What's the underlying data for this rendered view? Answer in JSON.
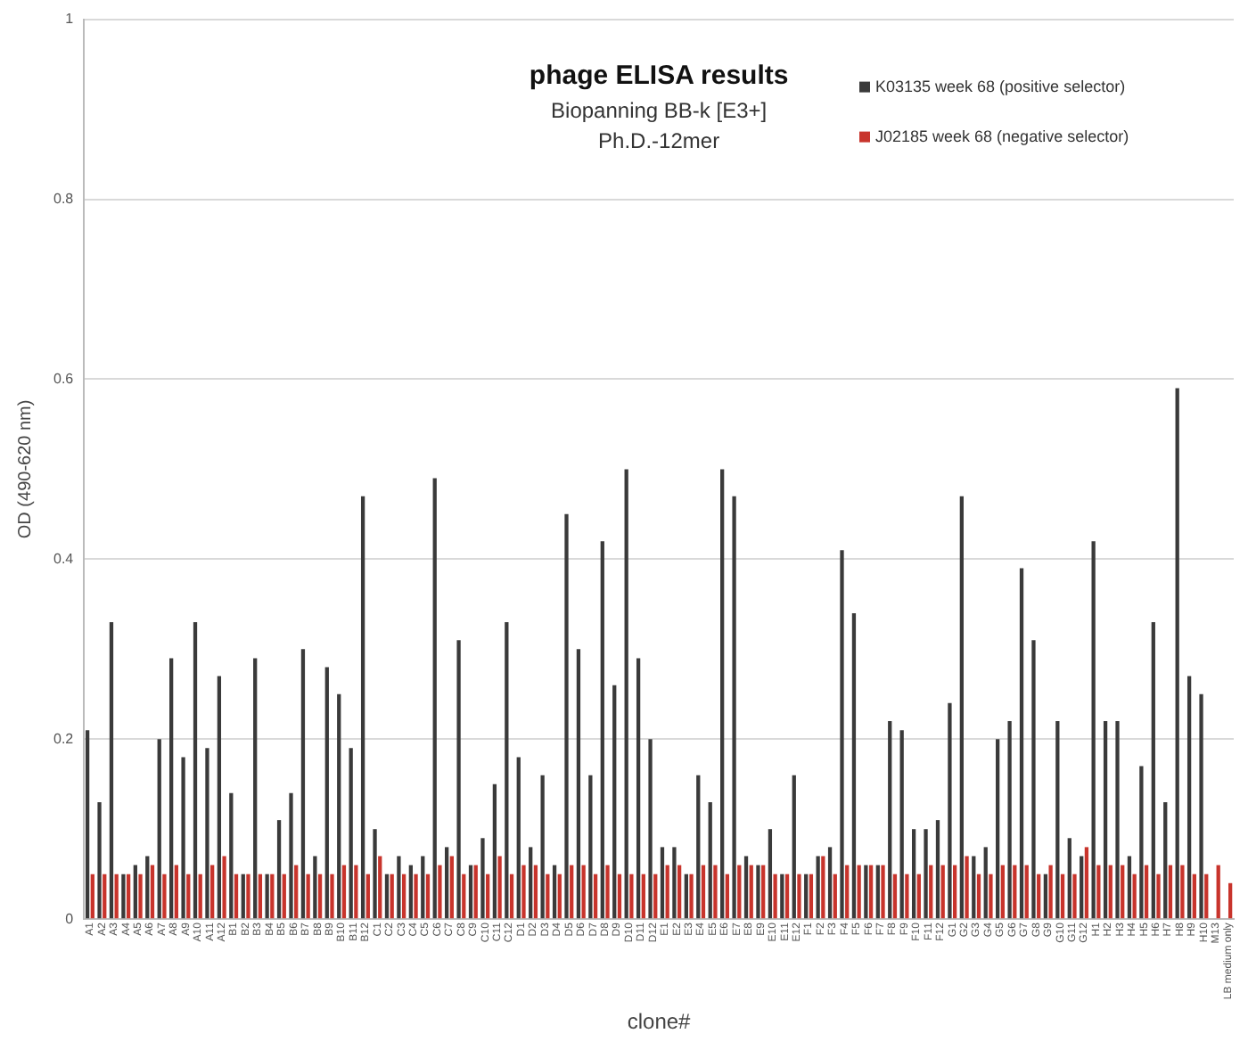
{
  "chart_data": {
    "type": "bar",
    "title": "phage ELISA results",
    "subtitle": "Biopanning BB-k [E3+]\nPh.D.-12mer",
    "xlabel": "clone#",
    "ylabel": "OD (490-620 nm)",
    "categories": [
      "A1",
      "A2",
      "A3",
      "A4",
      "A5",
      "A6",
      "A7",
      "A8",
      "A9",
      "A10",
      "A11",
      "A12",
      "B1",
      "B2",
      "B3",
      "B4",
      "B5",
      "B6",
      "B7",
      "B8",
      "B9",
      "B10",
      "B11",
      "B12",
      "C1",
      "C2",
      "C3",
      "C4",
      "C5",
      "C6",
      "C7",
      "C8",
      "C9",
      "C10",
      "C11",
      "C12",
      "D1",
      "D2",
      "D3",
      "D4",
      "D5",
      "D6",
      "D7",
      "D8",
      "D9",
      "D10",
      "D11",
      "D12",
      "E1",
      "E2",
      "E3",
      "E4",
      "E5",
      "E6",
      "E7",
      "E8",
      "E9",
      "E10",
      "E11",
      "E12",
      "F1",
      "F2",
      "F3",
      "F4",
      "F5",
      "F6",
      "F7",
      "F8",
      "F9",
      "F10",
      "F11",
      "F12",
      "G1",
      "G2",
      "G3",
      "G4",
      "G5",
      "G6",
      "G7",
      "G8",
      "G9",
      "G10",
      "G11",
      "G12",
      "H1",
      "H2",
      "H3",
      "H4",
      "H5",
      "H6",
      "H7",
      "H8",
      "H9",
      "H10",
      "M13",
      "LB medium only"
    ],
    "series": [
      {
        "name": "K03135 week 68 (positive selector)",
        "color": "#3a3a3a",
        "values": [
          0.21,
          0.13,
          0.33,
          0.05,
          0.06,
          0.07,
          0.2,
          0.29,
          0.18,
          0.33,
          0.19,
          0.27,
          0.14,
          0.05,
          0.29,
          0.05,
          0.11,
          0.14,
          0.3,
          0.07,
          0.28,
          0.25,
          0.19,
          0.47,
          0.1,
          0.05,
          0.07,
          0.06,
          0.07,
          0.49,
          0.08,
          0.31,
          0.06,
          0.09,
          0.15,
          0.33,
          0.18,
          0.08,
          0.16,
          0.06,
          0.45,
          0.3,
          0.16,
          0.42,
          0.26,
          0.5,
          0.29,
          0.2,
          0.08,
          0.08,
          0.05,
          0.16,
          0.13,
          0.5,
          0.47,
          0.07,
          0.06,
          0.1,
          0.05,
          0.16,
          0.05,
          0.07,
          0.08,
          0.41,
          0.34,
          0.06,
          0.06,
          0.22,
          0.21,
          0.1,
          0.1,
          0.11,
          0.24,
          0.47,
          0.07,
          0.08,
          0.2,
          0.22,
          0.39,
          0.31,
          0.05,
          0.22,
          0.09,
          0.07,
          0.42,
          0.22,
          0.22,
          0.07,
          0.17,
          0.33,
          0.13,
          0.59,
          0.27,
          0.25,
          null,
          null
        ]
      },
      {
        "name": "J02185 week 68 (negative selector)",
        "color": "#c8342c",
        "values": [
          0.05,
          0.05,
          0.05,
          0.05,
          0.05,
          0.06,
          0.05,
          0.06,
          0.05,
          0.05,
          0.06,
          0.07,
          0.05,
          0.05,
          0.05,
          0.05,
          0.05,
          0.06,
          0.05,
          0.05,
          0.05,
          0.06,
          0.06,
          0.05,
          0.07,
          0.05,
          0.05,
          0.05,
          0.05,
          0.06,
          0.07,
          0.05,
          0.06,
          0.05,
          0.07,
          0.05,
          0.06,
          0.06,
          0.05,
          0.05,
          0.06,
          0.06,
          0.05,
          0.06,
          0.05,
          0.05,
          0.05,
          0.05,
          0.06,
          0.06,
          0.05,
          0.06,
          0.06,
          0.05,
          0.06,
          0.06,
          0.06,
          0.05,
          0.05,
          0.05,
          0.05,
          0.07,
          0.05,
          0.06,
          0.06,
          0.06,
          0.06,
          0.05,
          0.05,
          0.05,
          0.06,
          0.06,
          0.06,
          0.07,
          0.05,
          0.05,
          0.06,
          0.06,
          0.06,
          0.05,
          0.06,
          0.05,
          0.05,
          0.08,
          0.06,
          0.06,
          0.06,
          0.05,
          0.06,
          0.05,
          0.06,
          0.06,
          0.05,
          0.05,
          0.06,
          0.04
        ]
      }
    ],
    "ylim": [
      0,
      1
    ],
    "yticks": [
      0,
      0.2,
      0.4,
      0.6,
      0.8,
      1
    ],
    "grid": "y",
    "legend": "top right"
  }
}
